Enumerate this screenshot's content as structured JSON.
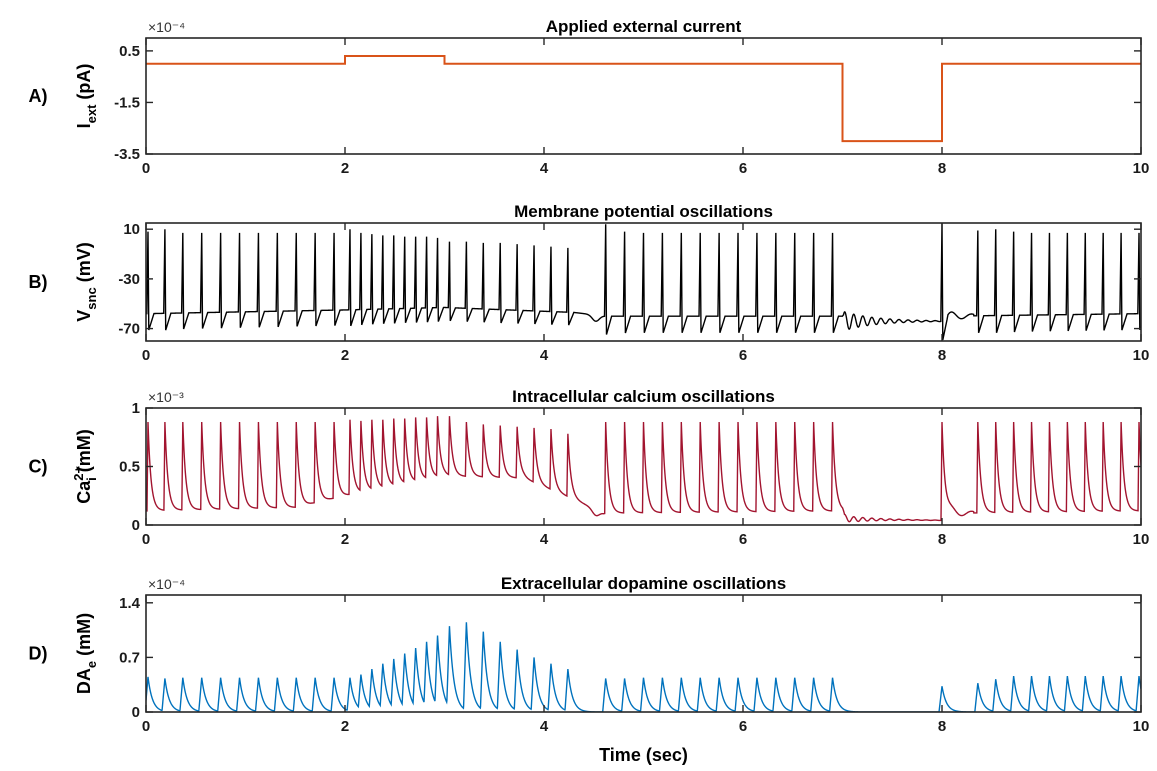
{
  "x_axis_label": "Time (sec)",
  "chart_data": [
    {
      "panel": "A)",
      "title": "Applied external current",
      "type": "line",
      "ylabel_main": "I",
      "ylabel_sub": "ext",
      "ylabel_sup": "",
      "ylabel_unit": "(pA)",
      "exponent": "×10⁻⁴",
      "color": "#D95319",
      "xlim": [
        0,
        10
      ],
      "ylim": [
        -3.5,
        1.0
      ],
      "xticks": [
        0,
        2,
        4,
        6,
        8,
        10
      ],
      "yticks": [
        -3.5,
        -1.5,
        0.5
      ],
      "ytick_labels": [
        "-3.5",
        "-1.5",
        "0.5"
      ],
      "x": [
        0,
        2.0,
        2.0,
        3.0,
        3.0,
        7.0,
        7.0,
        8.0,
        8.0,
        10
      ],
      "y": [
        0.0,
        0.0,
        0.3,
        0.3,
        0.0,
        0.0,
        -3.0,
        -3.0,
        0.0,
        0.0
      ]
    },
    {
      "panel": "B)",
      "title": "Membrane potential oscillations",
      "type": "line",
      "ylabel_main": "V",
      "ylabel_sub": "snc",
      "ylabel_sup": "",
      "ylabel_unit": "(mV)",
      "exponent": "",
      "color": "#000000",
      "xlim": [
        0,
        10
      ],
      "ylim": [
        -80,
        15
      ],
      "xticks": [
        0,
        2,
        4,
        6,
        8,
        10
      ],
      "yticks": [
        -70,
        -30,
        10
      ],
      "ytick_labels": [
        "-70",
        "-30",
        "10"
      ],
      "baseline": [
        [
          0,
          -58
        ],
        [
          2,
          -55
        ],
        [
          3,
          -53
        ],
        [
          4.3,
          -57
        ],
        [
          4.62,
          -60
        ],
        [
          7,
          -60
        ],
        [
          7.01,
          -64
        ],
        [
          8,
          -64
        ],
        [
          8.05,
          -60
        ],
        [
          10,
          -58
        ]
      ],
      "spike_times": [
        0.02,
        0.19,
        0.37,
        0.56,
        0.75,
        0.94,
        1.13,
        1.32,
        1.51,
        1.7,
        1.89,
        2.05,
        2.16,
        2.27,
        2.38,
        2.49,
        2.6,
        2.71,
        2.82,
        2.93,
        3.05,
        3.22,
        3.39,
        3.56,
        3.73,
        3.9,
        4.07,
        4.24,
        4.62,
        4.81,
        5.0,
        5.19,
        5.38,
        5.57,
        5.76,
        5.95,
        6.14,
        6.33,
        6.52,
        6.71,
        6.9,
        8.0,
        8.36,
        8.54,
        8.72,
        8.9,
        9.08,
        9.26,
        9.44,
        9.62,
        9.8,
        9.98
      ],
      "spike_peaks": [
        8,
        10,
        7,
        7,
        7,
        7,
        7,
        7,
        7,
        7,
        7,
        10,
        7,
        6,
        5,
        5,
        4,
        4,
        4,
        3,
        0,
        0,
        -1,
        -1,
        -2,
        -3,
        -4,
        -5,
        14,
        8,
        7,
        7,
        7,
        7,
        7,
        7,
        7,
        7,
        7,
        7,
        7,
        15,
        9,
        10,
        8,
        7,
        7,
        7,
        7,
        7,
        7,
        7
      ]
    },
    {
      "panel": "C)",
      "title": "Intracellular calcium oscillations",
      "type": "line",
      "ylabel_main": "Ca",
      "ylabel_sub": "i",
      "ylabel_sup": "2+",
      "ylabel_unit": "(mM)",
      "exponent": "×10⁻³",
      "color": "#A2142F",
      "xlim": [
        0,
        10
      ],
      "ylim": [
        0,
        1
      ],
      "xticks": [
        0,
        2,
        4,
        6,
        8,
        10
      ],
      "yticks": [
        0,
        0.5,
        1
      ],
      "ytick_labels": [
        "0",
        "0.5",
        "1"
      ],
      "baseline": [
        [
          0,
          0.12
        ],
        [
          1.5,
          0.15
        ],
        [
          2.0,
          0.25
        ],
        [
          3.0,
          0.42
        ],
        [
          3.8,
          0.4
        ],
        [
          4.3,
          0.22
        ],
        [
          4.6,
          0.1
        ],
        [
          7.0,
          0.12
        ],
        [
          7.02,
          0.05
        ],
        [
          8.0,
          0.04
        ],
        [
          8.05,
          0.1
        ],
        [
          10,
          0.12
        ]
      ],
      "spike_times": [
        0.02,
        0.19,
        0.37,
        0.56,
        0.75,
        0.94,
        1.13,
        1.32,
        1.51,
        1.7,
        1.89,
        2.05,
        2.16,
        2.27,
        2.38,
        2.49,
        2.6,
        2.71,
        2.82,
        2.93,
        3.05,
        3.22,
        3.39,
        3.56,
        3.73,
        3.9,
        4.07,
        4.24,
        4.62,
        4.81,
        5.0,
        5.19,
        5.38,
        5.57,
        5.76,
        5.95,
        6.14,
        6.33,
        6.52,
        6.71,
        6.9,
        8.0,
        8.36,
        8.54,
        8.72,
        8.9,
        9.08,
        9.26,
        9.44,
        9.62,
        9.8,
        9.98
      ],
      "spike_peaks": [
        0.88,
        0.88,
        0.88,
        0.88,
        0.88,
        0.88,
        0.88,
        0.88,
        0.88,
        0.88,
        0.88,
        0.9,
        0.89,
        0.9,
        0.9,
        0.91,
        0.91,
        0.92,
        0.92,
        0.93,
        0.93,
        0.88,
        0.86,
        0.85,
        0.84,
        0.83,
        0.82,
        0.78,
        0.88,
        0.88,
        0.88,
        0.88,
        0.88,
        0.88,
        0.88,
        0.88,
        0.88,
        0.88,
        0.88,
        0.88,
        0.88,
        0.88,
        0.88,
        0.88,
        0.88,
        0.88,
        0.88,
        0.88,
        0.88,
        0.88,
        0.88,
        0.88
      ]
    },
    {
      "panel": "D)",
      "title": "Extracellular dopamine oscillations",
      "type": "line",
      "ylabel_main": "DA",
      "ylabel_sub": "e",
      "ylabel_sup": "",
      "ylabel_unit": "(mM)",
      "exponent": "×10⁻⁴",
      "color": "#0072BD",
      "xlim": [
        0,
        10
      ],
      "ylim": [
        0,
        1.5
      ],
      "xticks": [
        0,
        2,
        4,
        6,
        8,
        10
      ],
      "yticks": [
        0,
        0.7,
        1.4
      ],
      "ytick_labels": [
        "0",
        "0.7",
        "1.4"
      ],
      "baseline": [
        [
          0,
          0
        ],
        [
          10,
          0
        ]
      ],
      "spike_times": [
        0.02,
        0.19,
        0.37,
        0.56,
        0.75,
        0.94,
        1.13,
        1.32,
        1.51,
        1.7,
        1.89,
        2.05,
        2.16,
        2.27,
        2.38,
        2.49,
        2.6,
        2.71,
        2.82,
        2.93,
        3.05,
        3.22,
        3.39,
        3.56,
        3.73,
        3.9,
        4.07,
        4.24,
        4.62,
        4.81,
        5.0,
        5.19,
        5.38,
        5.57,
        5.76,
        5.95,
        6.14,
        6.33,
        6.52,
        6.71,
        6.9,
        8.0,
        8.36,
        8.54,
        8.72,
        8.9,
        9.08,
        9.26,
        9.44,
        9.62,
        9.8,
        9.98
      ],
      "spike_peaks": [
        0.45,
        0.43,
        0.44,
        0.44,
        0.44,
        0.44,
        0.44,
        0.44,
        0.44,
        0.44,
        0.44,
        0.44,
        0.48,
        0.55,
        0.62,
        0.68,
        0.75,
        0.82,
        0.9,
        0.98,
        1.1,
        1.15,
        1.03,
        0.9,
        0.8,
        0.7,
        0.62,
        0.55,
        0.43,
        0.43,
        0.44,
        0.44,
        0.44,
        0.44,
        0.44,
        0.44,
        0.44,
        0.44,
        0.44,
        0.44,
        0.44,
        0.33,
        0.37,
        0.42,
        0.46,
        0.46,
        0.46,
        0.46,
        0.46,
        0.46,
        0.46,
        0.46
      ]
    }
  ]
}
